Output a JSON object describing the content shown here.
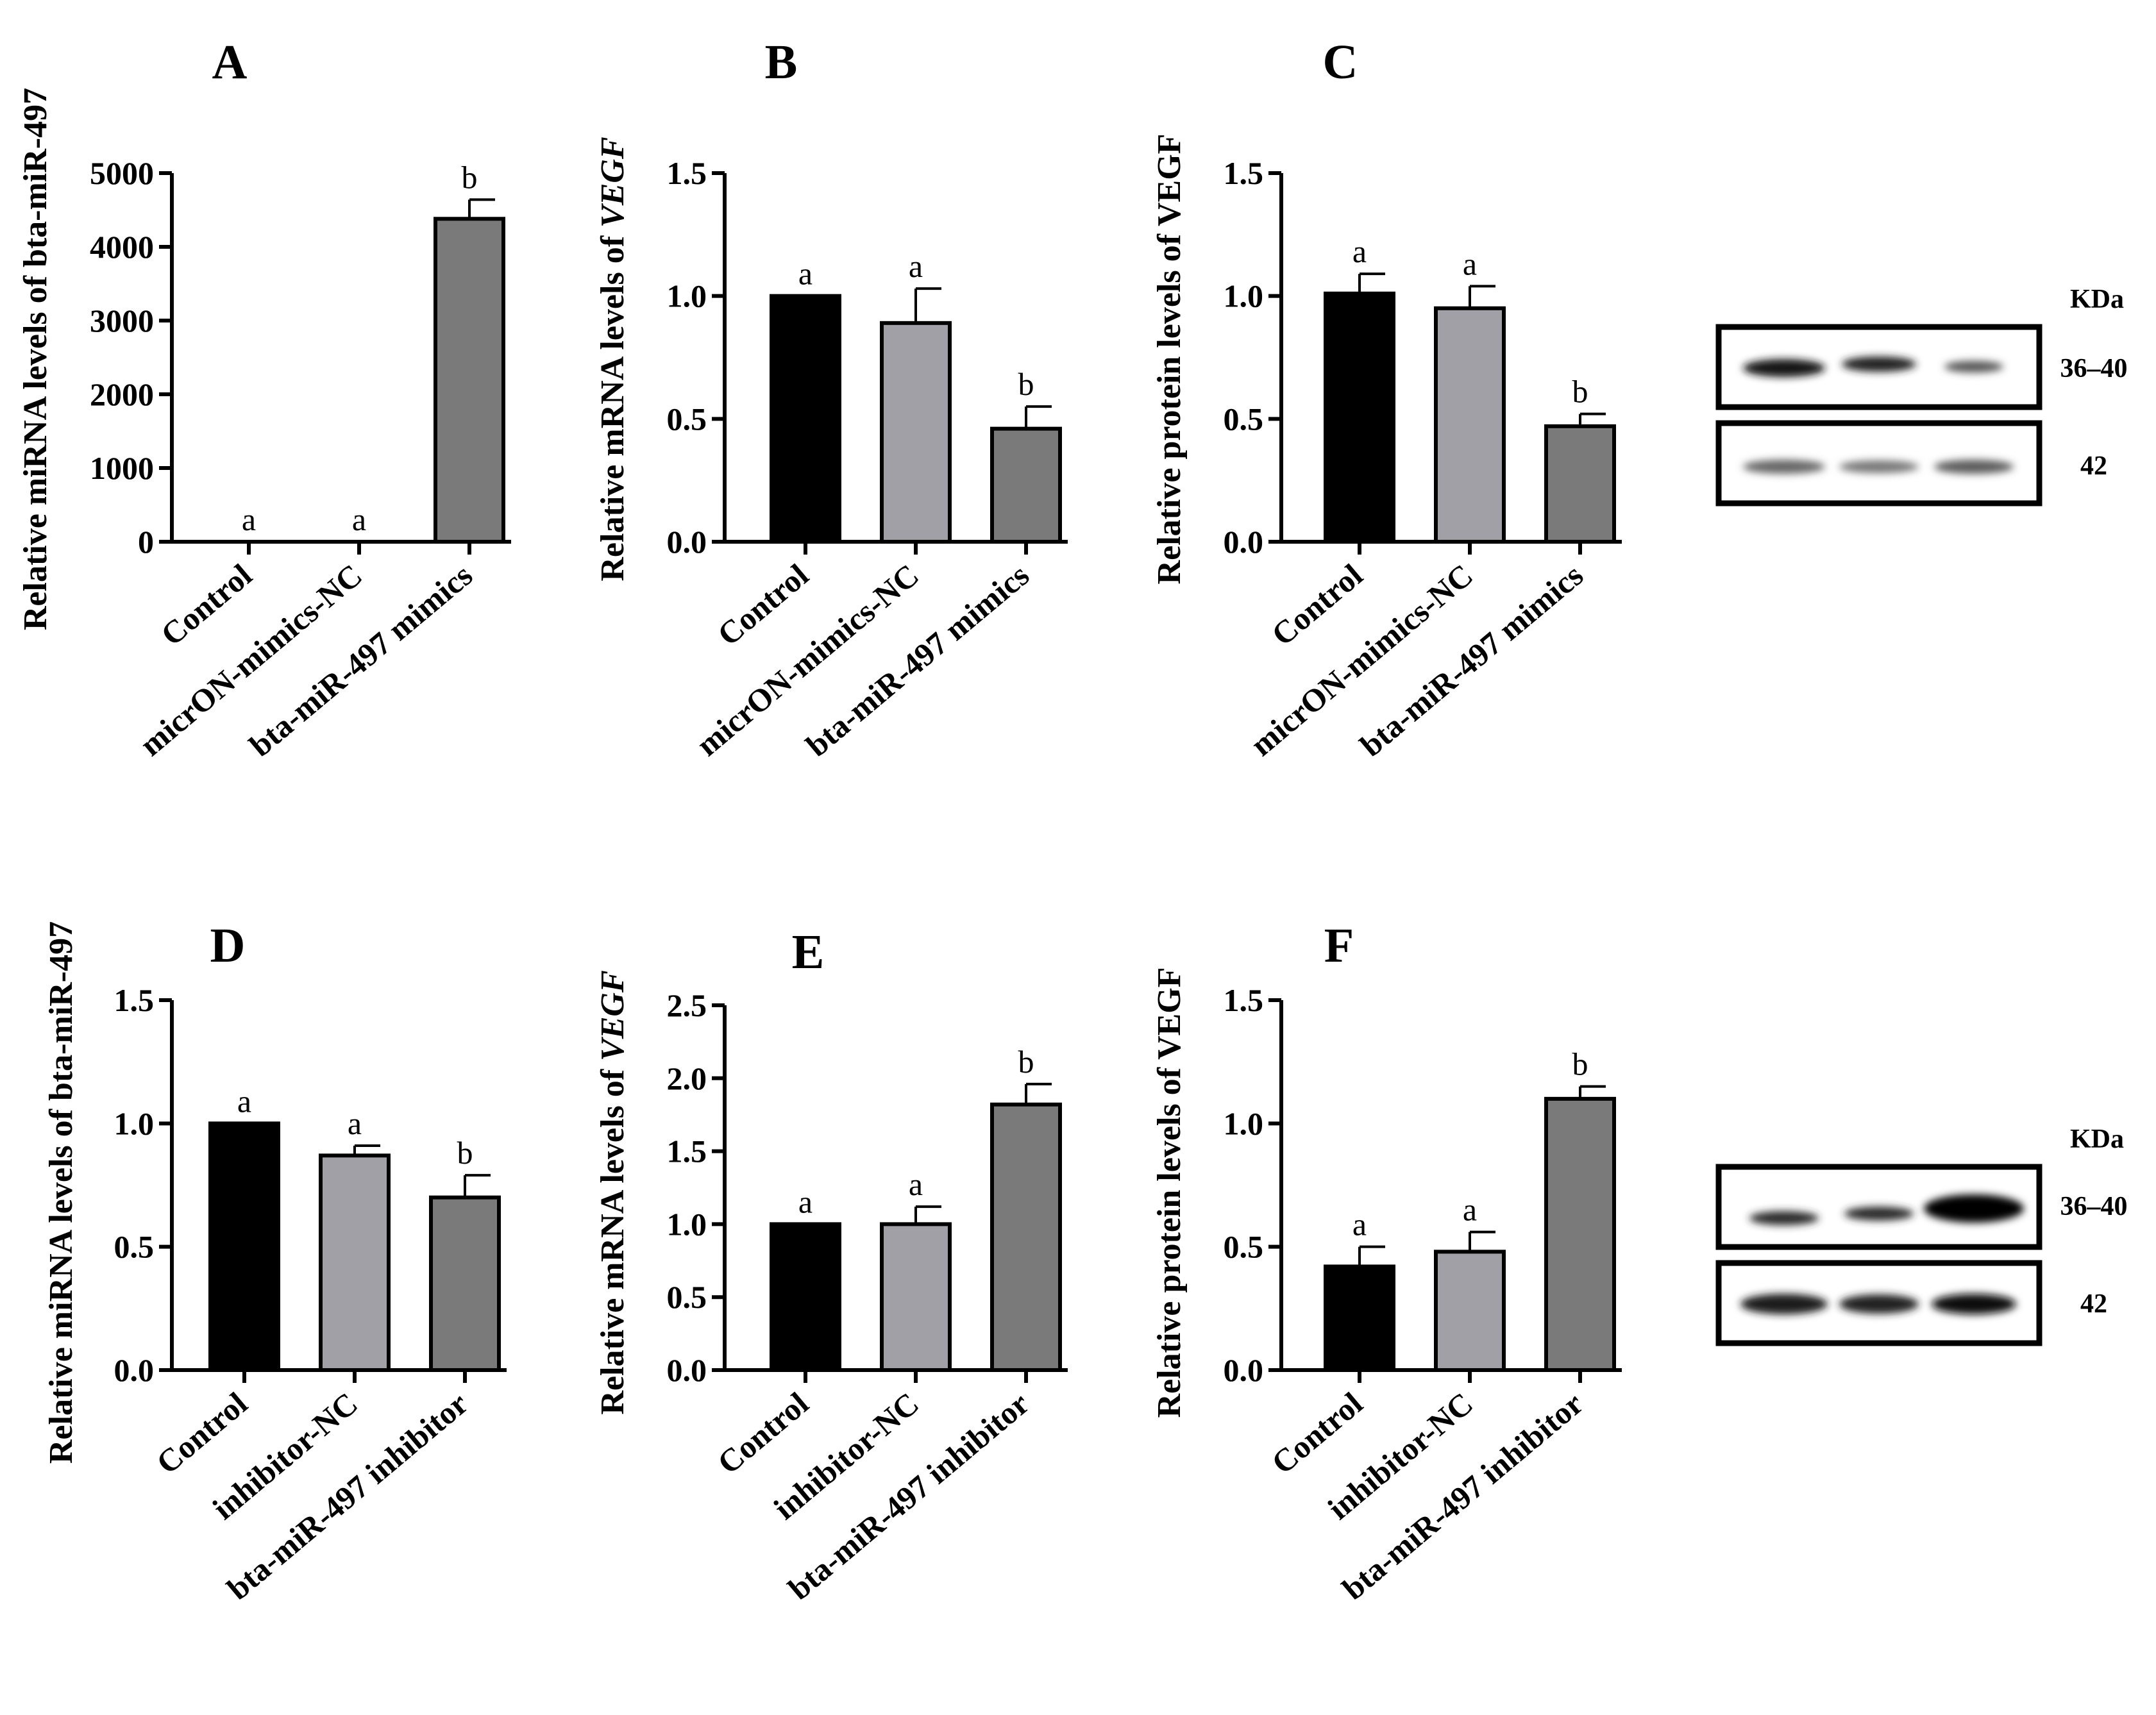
{
  "colors": {
    "Control": "#000000",
    "NC": "#a0a0a6",
    "treatment": "#7a7a7a"
  },
  "chart_data": [
    {
      "id": "A",
      "type": "bar",
      "panel": "A",
      "ylabel": "Relative miRNA levels of bta-miR-497",
      "ylabel_italic": "",
      "categories": [
        "Control",
        "micrON-mimics-NC",
        "bta-miR-497 mimics"
      ],
      "values": [
        1,
        1,
        4380
      ],
      "errors": [
        0,
        0,
        260
      ],
      "significance": [
        "a",
        "a",
        "b"
      ],
      "ylim": [
        0,
        5000
      ],
      "yticks": [
        0,
        1000,
        2000,
        3000,
        4000,
        5000
      ],
      "ytick_labels": [
        "0",
        "1000",
        "2000",
        "3000",
        "4000",
        "5000"
      ]
    },
    {
      "id": "B",
      "type": "bar",
      "panel": "B",
      "ylabel": "Relative mRNA levels of ",
      "ylabel_italic": "VEGF",
      "categories": [
        "Control",
        "micrON-mimics-NC",
        "bta-miR-497 mimics"
      ],
      "values": [
        1.0,
        0.89,
        0.46
      ],
      "errors": [
        0,
        0.14,
        0.09
      ],
      "significance": [
        "a",
        "a",
        "b"
      ],
      "ylim": [
        0,
        1.5
      ],
      "yticks": [
        0,
        0.5,
        1.0,
        1.5
      ],
      "ytick_labels": [
        "0.0",
        "0.5",
        "1.0",
        "1.5"
      ]
    },
    {
      "id": "C",
      "type": "bar",
      "panel": "C",
      "ylabel": "Relative protein levels of VEGF",
      "ylabel_italic": "",
      "categories": [
        "Control",
        "micrON-mimics-NC",
        "bta-miR-497 mimics"
      ],
      "values": [
        1.01,
        0.95,
        0.47
      ],
      "errors": [
        0.08,
        0.09,
        0.05
      ],
      "significance": [
        "a",
        "a",
        "b"
      ],
      "ylim": [
        0,
        1.5
      ],
      "yticks": [
        0,
        0.5,
        1.0,
        1.5
      ],
      "ytick_labels": [
        "0.0",
        "0.5",
        "1.0",
        "1.5"
      ]
    },
    {
      "id": "D",
      "type": "bar",
      "panel": "D",
      "ylabel": "Relative miRNA levels of bta-miR-497",
      "ylabel_italic": "",
      "categories": [
        "Control",
        "inhibitor-NC",
        "bta-miR-497 inhibitor"
      ],
      "values": [
        1.0,
        0.87,
        0.7
      ],
      "errors": [
        0,
        0.04,
        0.09
      ],
      "significance": [
        "a",
        "a",
        "b"
      ],
      "ylim": [
        0,
        1.5
      ],
      "yticks": [
        0,
        0.5,
        1.0,
        1.5
      ],
      "ytick_labels": [
        "0.0",
        "0.5",
        "1.0",
        "1.5"
      ]
    },
    {
      "id": "E",
      "type": "bar",
      "panel": "E",
      "ylabel": "Relative mRNA levels of ",
      "ylabel_italic": "VEGF",
      "categories": [
        "Control",
        "inhibitor-NC",
        "bta-miR-497 inhibitor"
      ],
      "values": [
        1.0,
        1.0,
        1.82
      ],
      "errors": [
        0,
        0.12,
        0.14
      ],
      "significance": [
        "a",
        "a",
        "b"
      ],
      "ylim": [
        0,
        2.5
      ],
      "yticks": [
        0,
        0.5,
        1.0,
        1.5,
        2.0,
        2.5
      ],
      "ytick_labels": [
        "0.0",
        "0.5",
        "1.0",
        "1.5",
        "2.0",
        "2.5"
      ]
    },
    {
      "id": "F",
      "type": "bar",
      "panel": "F",
      "ylabel": "Relative protein levels of VEGF",
      "ylabel_italic": "",
      "categories": [
        "Control",
        "inhibitor-NC",
        "bta-miR-497 inhibitor"
      ],
      "values": [
        0.42,
        0.48,
        1.1
      ],
      "errors": [
        0.08,
        0.08,
        0.05
      ],
      "significance": [
        "a",
        "a",
        "b"
      ],
      "ylim": [
        0,
        1.5
      ],
      "yticks": [
        0,
        0.5,
        1.0,
        1.5
      ],
      "ytick_labels": [
        "0.0",
        "0.5",
        "1.0",
        "1.5"
      ]
    }
  ],
  "western_blots": [
    {
      "unit": "KDa",
      "band_labels": [
        "36–40",
        "42"
      ]
    },
    {
      "unit": "KDa",
      "band_labels": [
        "36–40",
        "42"
      ]
    }
  ]
}
